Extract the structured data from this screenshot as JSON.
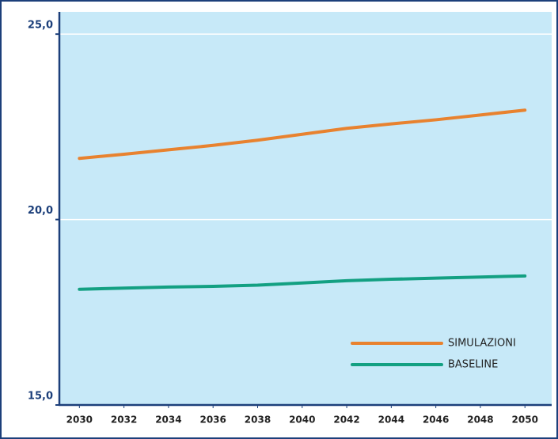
{
  "chart_data": {
    "type": "line",
    "x": [
      2030,
      2032,
      2034,
      2036,
      2038,
      2040,
      2042,
      2044,
      2046,
      2048,
      2050
    ],
    "series": [
      {
        "name": "SIMULAZIONI",
        "color": "#e8822f",
        "values": [
          21.65,
          21.76,
          21.88,
          22.0,
          22.14,
          22.3,
          22.46,
          22.58,
          22.69,
          22.82,
          22.95
        ]
      },
      {
        "name": "BASELINE",
        "color": "#13a082",
        "values": [
          18.12,
          18.15,
          18.18,
          18.2,
          18.23,
          18.29,
          18.35,
          18.39,
          18.42,
          18.45,
          18.48
        ]
      }
    ],
    "xlim": [
      2029.1,
      2051.2
    ],
    "xticks": [
      2030,
      2032,
      2034,
      2036,
      2038,
      2040,
      2042,
      2044,
      2046,
      2048,
      2050
    ],
    "ylim": [
      15,
      25.6
    ],
    "yticks": [
      {
        "value": 15,
        "label": "15,0"
      },
      {
        "value": 20,
        "label": "20,0"
      },
      {
        "value": 25,
        "label": "25,0"
      }
    ],
    "grid": true,
    "legend": "lower right"
  }
}
